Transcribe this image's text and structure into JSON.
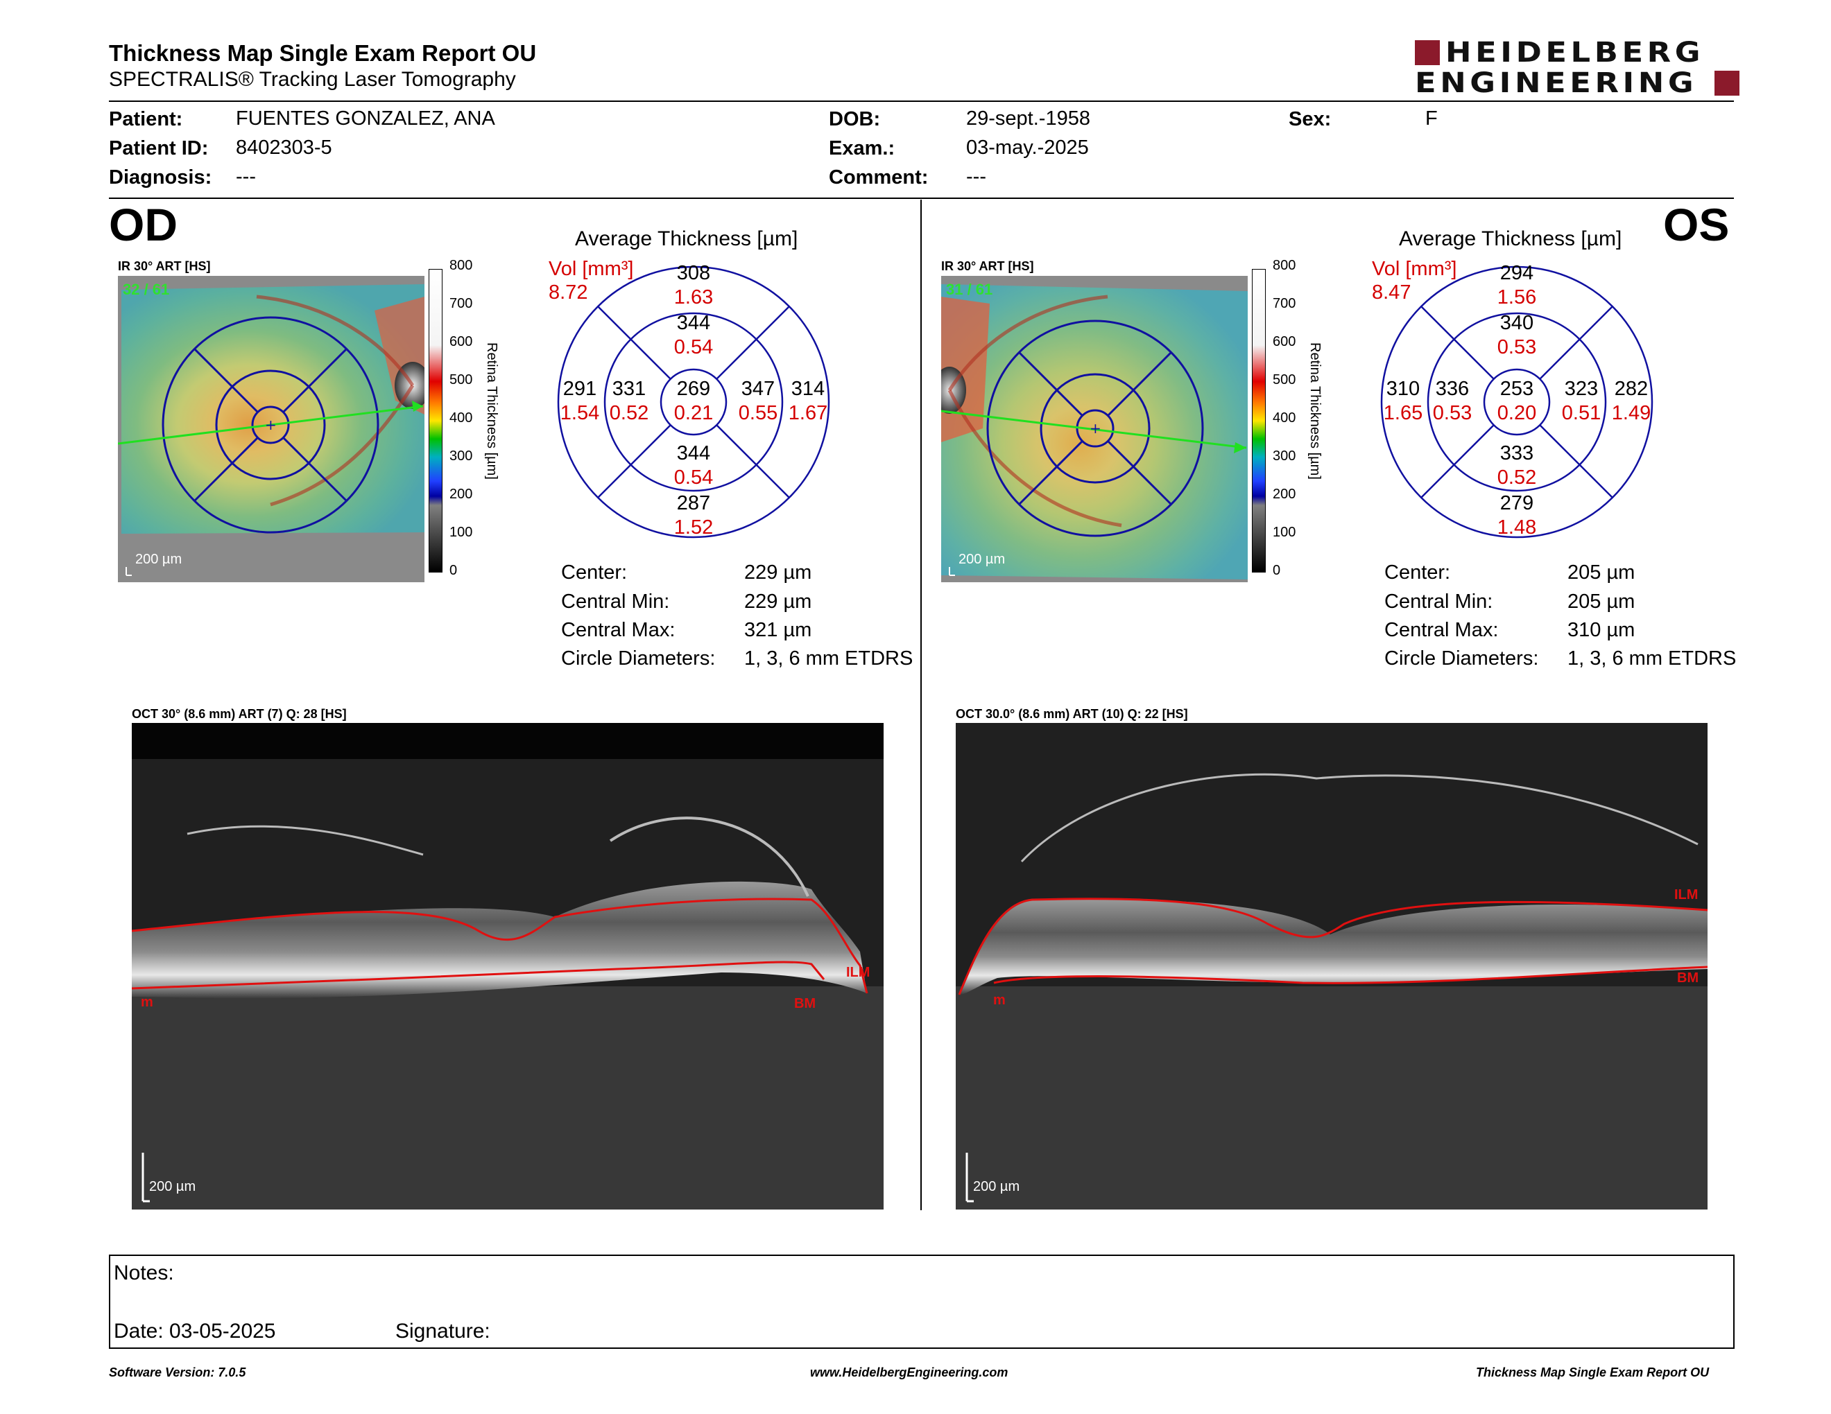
{
  "header": {
    "title": "Thickness Map Single Exam Report OU",
    "subtitle": "SPECTRALIS® Tracking Laser Tomography",
    "logo_line1": "HEIDELBERG",
    "logo_line2": "ENGINEERING",
    "logo_color": "#8b1a2b"
  },
  "patient": {
    "patient_label": "Patient:",
    "patient_value": "FUENTES GONZALEZ, ANA",
    "id_label": "Patient ID:",
    "id_value": "8402303-5",
    "diagnosis_label": "Diagnosis:",
    "diagnosis_value": "---",
    "dob_label": "DOB:",
    "dob_value": "29-sept.-1958",
    "exam_label": "Exam.:",
    "exam_value": "03-may.-2025",
    "comment_label": "Comment:",
    "comment_value": "---",
    "sex_label": "Sex:",
    "sex_value": "F"
  },
  "od": {
    "eye": "OD",
    "ir_label": "IR 30° ART [HS]",
    "frame_count": "32 / 61",
    "scale": "200 µm",
    "avg_title": "Average Thickness [µm]",
    "vol_label": "Vol [mm³]",
    "vol_total": "8.72",
    "etdrs": {
      "outer_sup": "308",
      "outer_sup_vol": "1.63",
      "inner_sup": "344",
      "inner_sup_vol": "0.54",
      "outer_left": "291",
      "outer_left_vol": "1.54",
      "inner_left": "331",
      "inner_left_vol": "0.52",
      "center": "269",
      "center_vol": "0.21",
      "inner_right": "347",
      "inner_right_vol": "0.55",
      "outer_right": "314",
      "outer_right_vol": "1.67",
      "inner_inf": "344",
      "inner_inf_vol": "0.54",
      "outer_inf": "287",
      "outer_inf_vol": "1.52"
    },
    "stats": {
      "center_label": "Center:",
      "center_value": "229 µm",
      "min_label": "Central Min:",
      "min_value": "229 µm",
      "max_label": "Central Max:",
      "max_value": "321 µm",
      "diam_label": "Circle Diameters:",
      "diam_value": "1, 3, 6 mm ETDRS"
    },
    "oct_label": "OCT 30° (8.6 mm) ART (7) Q: 28 [HS]",
    "oct_scale": "200 µm",
    "ilm": "ILM",
    "bm": "BM",
    "bm_left": "m"
  },
  "os": {
    "eye": "OS",
    "ir_label": "IR 30° ART [HS]",
    "frame_count": "31 / 61",
    "scale": "200 µm",
    "avg_title": "Average Thickness [µm]",
    "vol_label": "Vol [mm³]",
    "vol_total": "8.47",
    "etdrs": {
      "outer_sup": "294",
      "outer_sup_vol": "1.56",
      "inner_sup": "340",
      "inner_sup_vol": "0.53",
      "outer_left": "310",
      "outer_left_vol": "1.65",
      "inner_left": "336",
      "inner_left_vol": "0.53",
      "center": "253",
      "center_vol": "0.20",
      "inner_right": "323",
      "inner_right_vol": "0.51",
      "outer_right": "282",
      "outer_right_vol": "1.49",
      "inner_inf": "333",
      "inner_inf_vol": "0.52",
      "outer_inf": "279",
      "outer_inf_vol": "1.48"
    },
    "stats": {
      "center_label": "Center:",
      "center_value": "205 µm",
      "min_label": "Central Min:",
      "min_value": "205 µm",
      "max_label": "Central Max:",
      "max_value": "310 µm",
      "diam_label": "Circle Diameters:",
      "diam_value": "1, 3, 6 mm ETDRS"
    },
    "oct_label": "OCT 30.0° (8.6 mm) ART (10) Q: 22 [HS]",
    "oct_scale": "200 µm",
    "ilm": "ILM",
    "bm": "BM",
    "bm_left": "m"
  },
  "colorbar": {
    "title": "Retina Thickness [µm]",
    "ticks": [
      "800",
      "700",
      "600",
      "500",
      "400",
      "300",
      "200",
      "100",
      "0"
    ]
  },
  "notes": {
    "notes_label": "Notes:",
    "date_text": "Date: 03-05-2025",
    "signature_label": "Signature:"
  },
  "footer": {
    "software": "Software Version: 7.0.5",
    "website": "www.HeidelbergEngineering.com",
    "report_name": "Thickness Map Single Exam Report OU"
  }
}
